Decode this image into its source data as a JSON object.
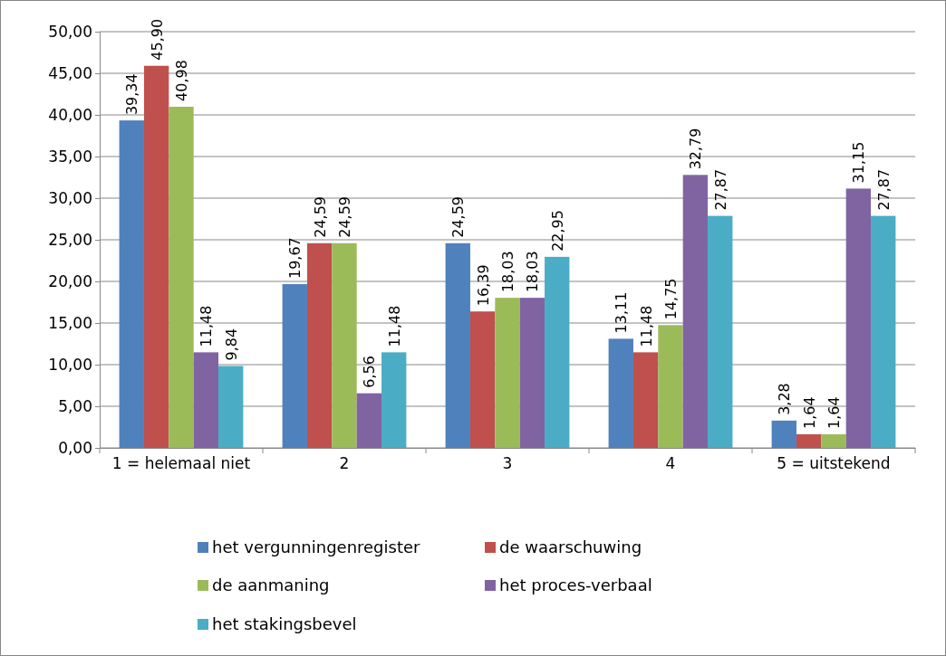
{
  "chart_data": {
    "type": "bar",
    "categories": [
      "1 = helemaal niet",
      "2",
      "3",
      "4",
      "5 = uitstekend"
    ],
    "series": [
      {
        "name": "het vergunningenregister",
        "color": "#4f81bd",
        "values": [
          39.34,
          19.67,
          24.59,
          13.11,
          3.28
        ],
        "value_labels": [
          "39,34",
          "19,67",
          "24,59",
          "13,11",
          "3,28"
        ]
      },
      {
        "name": "de waarschuwing",
        "color": "#c0504d",
        "values": [
          45.9,
          24.59,
          16.39,
          11.48,
          1.64
        ],
        "value_labels": [
          "45,90",
          "24,59",
          "16,39",
          "11,48",
          "1,64"
        ]
      },
      {
        "name": "de aanmaning",
        "color": "#9bbb59",
        "values": [
          40.98,
          24.59,
          18.03,
          14.75,
          1.64
        ],
        "value_labels": [
          "40,98",
          "24,59",
          "18,03",
          "14,75",
          "1,64"
        ]
      },
      {
        "name": "het proces-verbaal",
        "color": "#8064a2",
        "values": [
          11.48,
          6.56,
          18.03,
          32.79,
          31.15
        ],
        "value_labels": [
          "11,48",
          "6,56",
          "18,03",
          "32,79",
          "31,15"
        ]
      },
      {
        "name": "het stakingsbevel",
        "color": "#4bacc6",
        "values": [
          9.84,
          11.48,
          22.95,
          27.87,
          27.87
        ],
        "value_labels": [
          "9,84",
          "11,48",
          "22,95",
          "27,87",
          "27,87"
        ]
      }
    ],
    "ylim": [
      0,
      50
    ],
    "yticks": [
      {
        "value": 0,
        "label": "0,00"
      },
      {
        "value": 5,
        "label": "5,00"
      },
      {
        "value": 10,
        "label": "10,00"
      },
      {
        "value": 15,
        "label": "15,00"
      },
      {
        "value": 20,
        "label": "20,00"
      },
      {
        "value": 25,
        "label": "25,00"
      },
      {
        "value": 30,
        "label": "30,00"
      },
      {
        "value": 35,
        "label": "35,00"
      },
      {
        "value": 40,
        "label": "40,00"
      },
      {
        "value": 45,
        "label": "45,00"
      },
      {
        "value": 50,
        "label": "50,00"
      }
    ],
    "grid": "y",
    "legend": "bottom"
  }
}
